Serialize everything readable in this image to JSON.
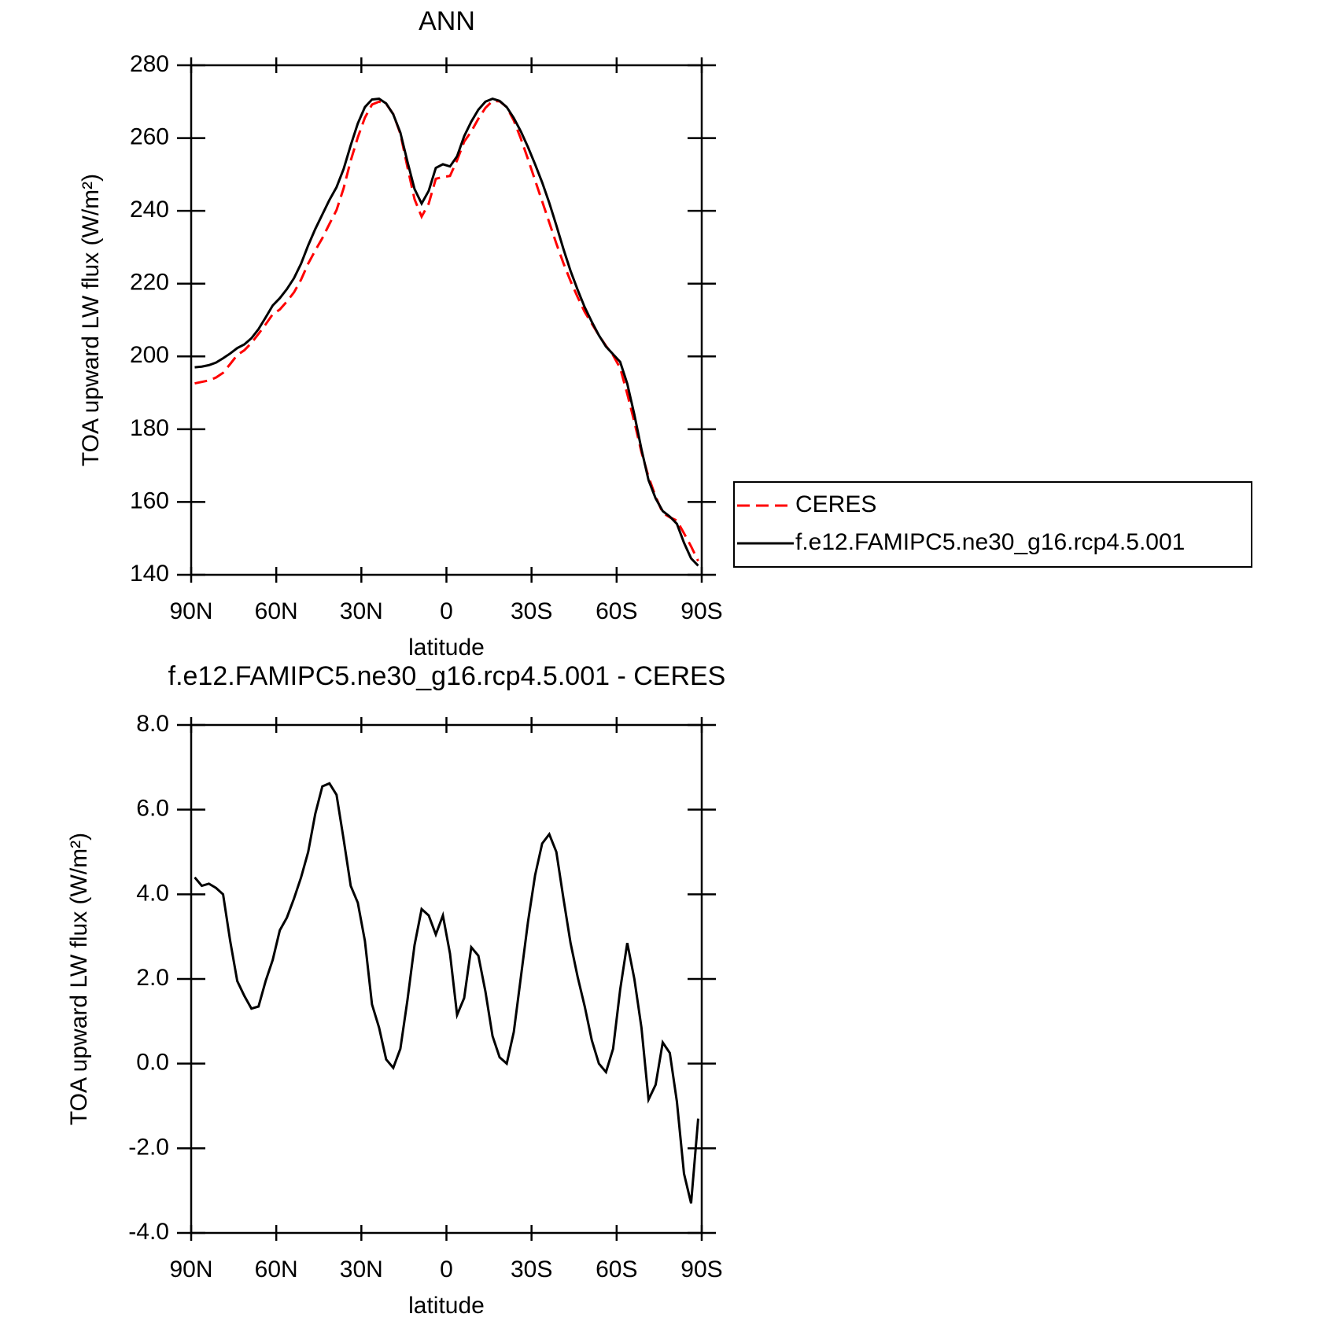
{
  "chart_data": [
    {
      "type": "line",
      "title": "ANN",
      "xlabel": "latitude",
      "ylabel": "TOA upward LW flux (W/m²)",
      "x": [
        88.75,
        86.25,
        83.75,
        81.25,
        78.75,
        76.25,
        73.75,
        71.25,
        68.75,
        66.25,
        63.75,
        61.25,
        58.75,
        56.25,
        53.75,
        51.25,
        48.75,
        46.25,
        43.75,
        41.25,
        38.75,
        36.25,
        33.75,
        31.25,
        28.75,
        26.25,
        23.75,
        21.25,
        18.75,
        16.25,
        13.75,
        11.25,
        8.75,
        6.25,
        3.75,
        1.25,
        -1.25,
        -3.75,
        -6.25,
        -8.75,
        -11.25,
        -13.75,
        -16.25,
        -18.75,
        -21.25,
        -23.75,
        -26.25,
        -28.75,
        -31.25,
        -33.75,
        -36.25,
        -38.75,
        -41.25,
        -43.75,
        -46.25,
        -48.75,
        -51.25,
        -53.75,
        -56.25,
        -58.75,
        -61.25,
        -63.75,
        -66.25,
        -68.75,
        -71.25,
        -73.75,
        -76.25,
        -78.75,
        -81.25,
        -83.75,
        -86.25,
        -88.75
      ],
      "xlim": [
        90,
        -90
      ],
      "xticks": [
        {
          "value": 90,
          "label": "90N"
        },
        {
          "value": 60,
          "label": "60N"
        },
        {
          "value": 30,
          "label": "30N"
        },
        0,
        {
          "value": -30,
          "label": "30S"
        },
        {
          "value": -60,
          "label": "60S"
        },
        {
          "value": -90,
          "label": "90S"
        }
      ],
      "ylim": [
        140,
        280
      ],
      "yticks": [
        140,
        160,
        180,
        200,
        220,
        240,
        260,
        280
      ],
      "legend": "right",
      "series": [
        {
          "name": "CERES",
          "color": "#ff0000",
          "dashed": true,
          "values": [
            192.6,
            193.0,
            193.4,
            194.2,
            195.5,
            197.9,
            200.4,
            201.7,
            203.7,
            206.2,
            208.8,
            211.6,
            212.9,
            215.1,
            217.6,
            221.1,
            225.5,
            229.1,
            232.5,
            236.4,
            240.2,
            246.2,
            253.8,
            260.2,
            265.6,
            269.2,
            270.0,
            269.4,
            266.6,
            261.2,
            252.0,
            243.2,
            238.4,
            242.0,
            248.8,
            249.3,
            249.6,
            253.9,
            259.0,
            261.8,
            265.3,
            268.3,
            270.2,
            270.1,
            268.5,
            264.8,
            259.8,
            254.2,
            248.4,
            242.6,
            236.8,
            231.0,
            225.6,
            220.7,
            216.3,
            212.2,
            209.0,
            205.8,
            202.9,
            200.3,
            196.8,
            189.7,
            182.0,
            173.7,
            166.9,
            161.5,
            157.0,
            155.8,
            154.9,
            151.4,
            147.8,
            143.8
          ]
        },
        {
          "name": "f.e12.FAMIPC5.ne30_g16.rcp4.5.001",
          "color": "#000000",
          "dashed": false,
          "values": [
            197.0,
            197.2,
            197.6,
            198.3,
            199.5,
            200.8,
            202.3,
            203.3,
            205.0,
            207.5,
            210.7,
            214.0,
            216.0,
            218.5,
            221.5,
            225.5,
            230.5,
            235.0,
            239.0,
            243.0,
            246.5,
            251.5,
            258.0,
            264.0,
            268.5,
            270.6,
            270.8,
            269.5,
            266.5,
            261.5,
            253.5,
            246.0,
            242.0,
            245.5,
            251.8,
            252.8,
            252.2,
            255.0,
            260.5,
            264.5,
            267.8,
            270.0,
            270.8,
            270.2,
            268.5,
            265.5,
            261.8,
            257.5,
            252.8,
            247.8,
            242.2,
            236.0,
            229.5,
            223.5,
            218.3,
            213.5,
            209.5,
            205.8,
            202.7,
            200.6,
            198.5,
            192.5,
            184.0,
            174.5,
            166.0,
            161.0,
            157.5,
            156.0,
            154.0,
            148.8,
            144.5,
            142.5
          ]
        }
      ]
    },
    {
      "type": "line",
      "title": "f.e12.FAMIPC5.ne30_g16.rcp4.5.001 - CERES",
      "xlabel": "latitude",
      "ylabel": "TOA upward LW flux (W/m²)",
      "x": [
        88.75,
        86.25,
        83.75,
        81.25,
        78.75,
        76.25,
        73.75,
        71.25,
        68.75,
        66.25,
        63.75,
        61.25,
        58.75,
        56.25,
        53.75,
        51.25,
        48.75,
        46.25,
        43.75,
        41.25,
        38.75,
        36.25,
        33.75,
        31.25,
        28.75,
        26.25,
        23.75,
        21.25,
        18.75,
        16.25,
        13.75,
        11.25,
        8.75,
        6.25,
        3.75,
        1.25,
        -1.25,
        -3.75,
        -6.25,
        -8.75,
        -11.25,
        -13.75,
        -16.25,
        -18.75,
        -21.25,
        -23.75,
        -26.25,
        -28.75,
        -31.25,
        -33.75,
        -36.25,
        -38.75,
        -41.25,
        -43.75,
        -46.25,
        -48.75,
        -51.25,
        -53.75,
        -56.25,
        -58.75,
        -61.25,
        -63.75,
        -66.25,
        -68.75,
        -71.25,
        -73.75,
        -76.25,
        -78.75,
        -81.25,
        -83.75,
        -86.25,
        -88.75
      ],
      "xlim": [
        90,
        -90
      ],
      "xticks": [
        {
          "value": 90,
          "label": "90N"
        },
        {
          "value": 60,
          "label": "60N"
        },
        {
          "value": 30,
          "label": "30N"
        },
        0,
        {
          "value": -30,
          "label": "30S"
        },
        {
          "value": -60,
          "label": "60S"
        },
        {
          "value": -90,
          "label": "90S"
        }
      ],
      "ylim": [
        -4,
        8
      ],
      "yticks": [
        {
          "value": -4,
          "label": "-4.0"
        },
        {
          "value": -2,
          "label": "-2.0"
        },
        {
          "value": 0,
          "label": "0.0"
        },
        {
          "value": 2,
          "label": "2.0"
        },
        {
          "value": 4,
          "label": "4.0"
        },
        {
          "value": 6,
          "label": "6.0"
        },
        {
          "value": 8,
          "label": "8.0"
        }
      ],
      "series": [
        {
          "color": "#000000",
          "values": [
            4.4,
            4.2,
            4.25,
            4.15,
            4.0,
            2.9,
            1.95,
            1.6,
            1.3,
            1.35,
            1.95,
            2.45,
            3.15,
            3.45,
            3.9,
            4.4,
            5.0,
            5.9,
            6.55,
            6.62,
            6.35,
            5.3,
            4.2,
            3.8,
            2.9,
            1.4,
            0.85,
            0.1,
            -0.1,
            0.35,
            1.5,
            2.8,
            3.65,
            3.5,
            3.05,
            3.5,
            2.6,
            1.15,
            1.55,
            2.75,
            2.55,
            1.7,
            0.65,
            0.15,
            0.0,
            0.75,
            2.05,
            3.35,
            4.45,
            5.2,
            5.42,
            5.0,
            3.9,
            2.85,
            2.05,
            1.35,
            0.55,
            0.0,
            -0.2,
            0.35,
            1.75,
            2.85,
            2.0,
            0.85,
            -0.85,
            -0.5,
            0.5,
            0.25,
            -0.9,
            -2.6,
            -3.3,
            -1.3
          ]
        }
      ]
    }
  ]
}
